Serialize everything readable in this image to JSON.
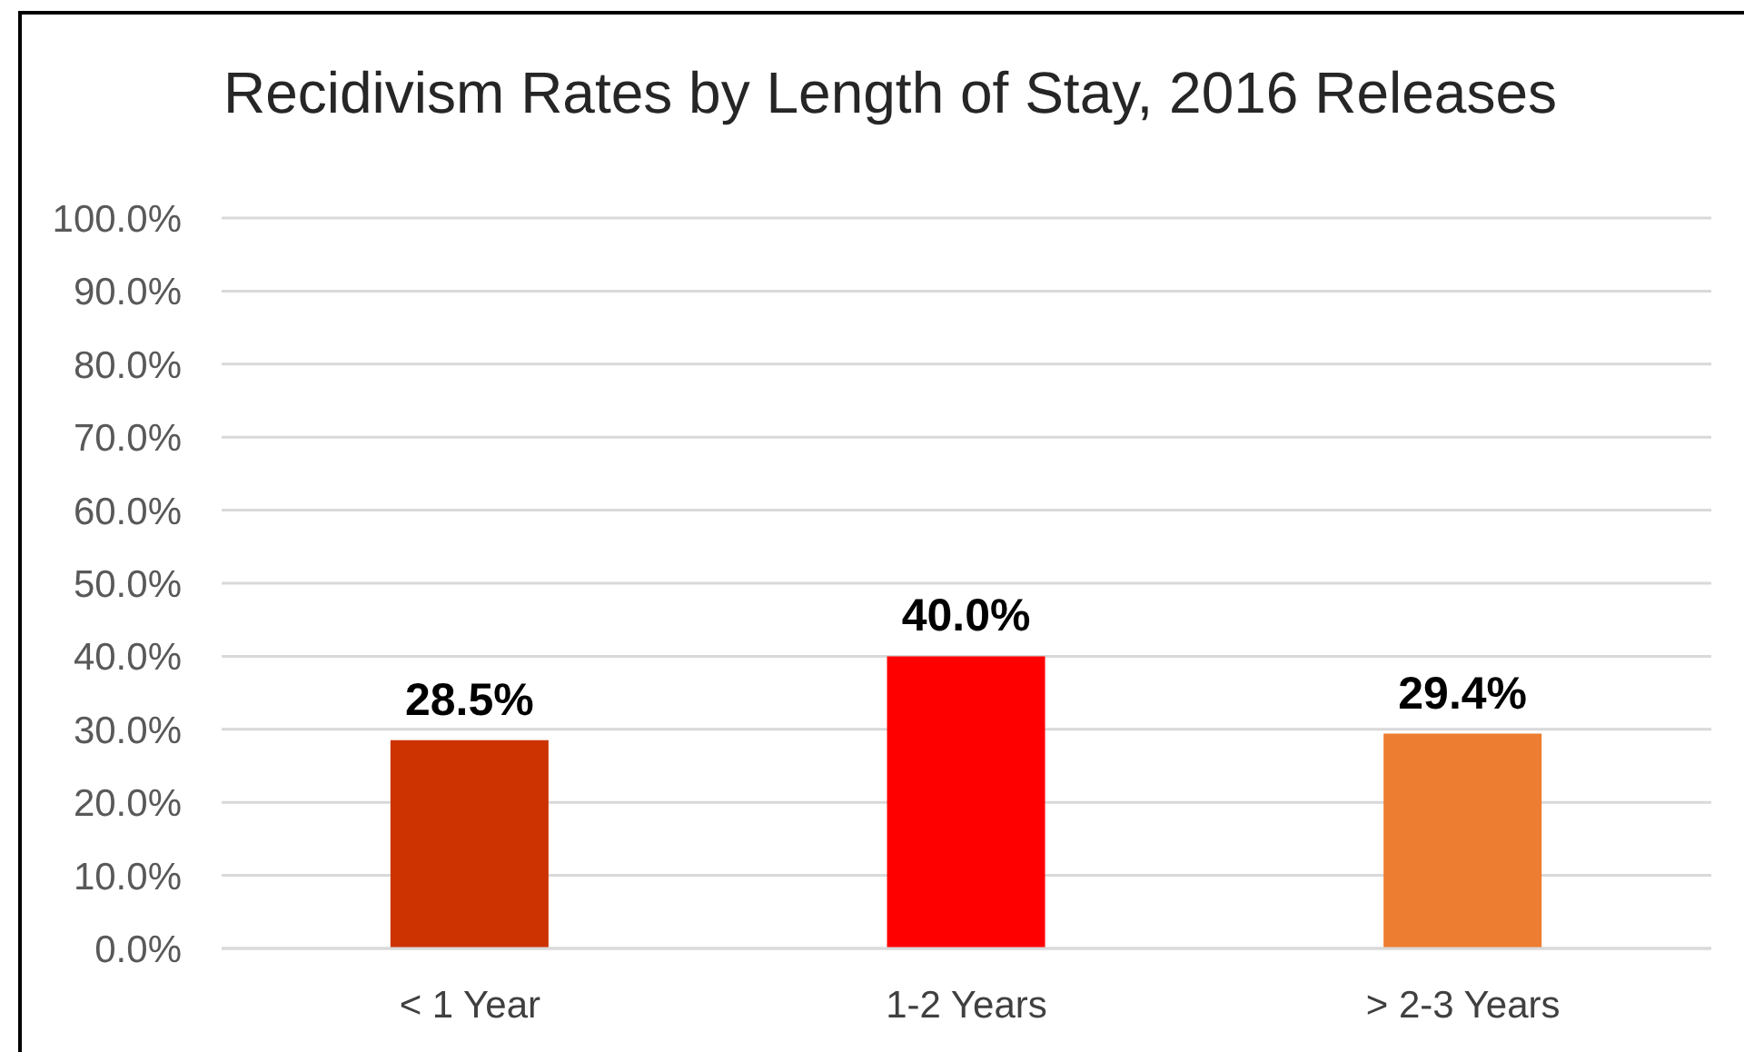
{
  "chart_data": {
    "type": "bar",
    "title": "Recidivism Rates by Length of Stay, 2016 Releases",
    "categories": [
      "< 1 Year",
      "1-2 Years",
      "> 2-3 Years"
    ],
    "values": [
      28.5,
      40.0,
      29.4
    ],
    "colors": [
      "#cc3300",
      "#ff0000",
      "#ed7d31"
    ],
    "value_labels": [
      "28.5%",
      "40.0%",
      "29.4%"
    ],
    "ylim": [
      0,
      100
    ],
    "yticks": [
      {
        "value": 0,
        "label": "0.0%"
      },
      {
        "value": 10,
        "label": "10.0%"
      },
      {
        "value": 20,
        "label": "20.0%"
      },
      {
        "value": 30,
        "label": "30.0%"
      },
      {
        "value": 40,
        "label": "40.0%"
      },
      {
        "value": 50,
        "label": "50.0%"
      },
      {
        "value": 60,
        "label": "60.0%"
      },
      {
        "value": 70,
        "label": "70.0%"
      },
      {
        "value": 80,
        "label": "80.0%"
      },
      {
        "value": 90,
        "label": "90.0%"
      },
      {
        "value": 100,
        "label": "100.0%"
      }
    ],
    "grid": "y"
  }
}
